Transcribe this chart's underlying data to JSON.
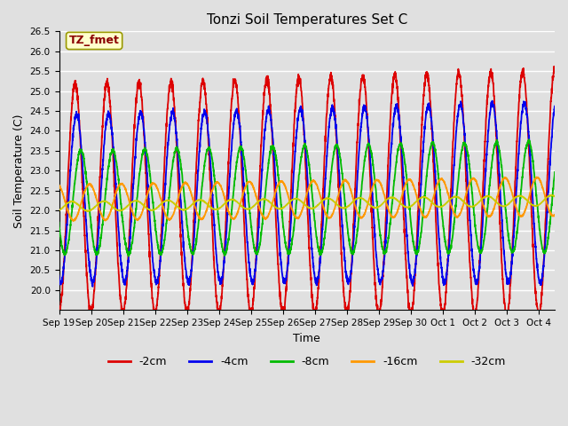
{
  "title": "Tonzi Soil Temperatures Set C",
  "xlabel": "Time",
  "ylabel": "Soil Temperature (C)",
  "ylim": [
    19.5,
    26.5
  ],
  "yticks": [
    20.0,
    20.5,
    21.0,
    21.5,
    22.0,
    22.5,
    23.0,
    23.5,
    24.0,
    24.5,
    25.0,
    25.5,
    26.0,
    26.5
  ],
  "series": [
    {
      "label": "-2cm",
      "color": "#dd0000",
      "amplitude": 2.85,
      "mean": 22.3,
      "lag_days": 0.0
    },
    {
      "label": "-4cm",
      "color": "#0000ee",
      "amplitude": 2.1,
      "mean": 22.3,
      "lag_days": 0.05
    },
    {
      "label": "-8cm",
      "color": "#00bb00",
      "amplitude": 1.3,
      "mean": 22.2,
      "lag_days": 0.18
    },
    {
      "label": "-16cm",
      "color": "#ff9900",
      "amplitude": 0.45,
      "mean": 22.2,
      "lag_days": 0.45
    },
    {
      "label": "-32cm",
      "color": "#cccc00",
      "amplitude": 0.12,
      "mean": 22.1,
      "lag_days": 0.9
    }
  ],
  "xtick_labels": [
    "Sep 19",
    "Sep 20",
    "Sep 21",
    "Sep 22",
    "Sep 23",
    "Sep 24",
    "Sep 25",
    "Sep 26",
    "Sep 27",
    "Sep 28",
    "Sep 29",
    "Sep 30",
    "Oct 1",
    "Oct 2",
    "Oct 3",
    "Oct 4"
  ],
  "n_days": 15.5,
  "annotation_text": "TZ_fmet",
  "background_color": "#e0e0e0",
  "plot_bg_color": "#e0e0e0",
  "grid_color": "#ffffff",
  "linewidth": 1.3,
  "figwidth": 6.4,
  "figheight": 4.8,
  "dpi": 100
}
